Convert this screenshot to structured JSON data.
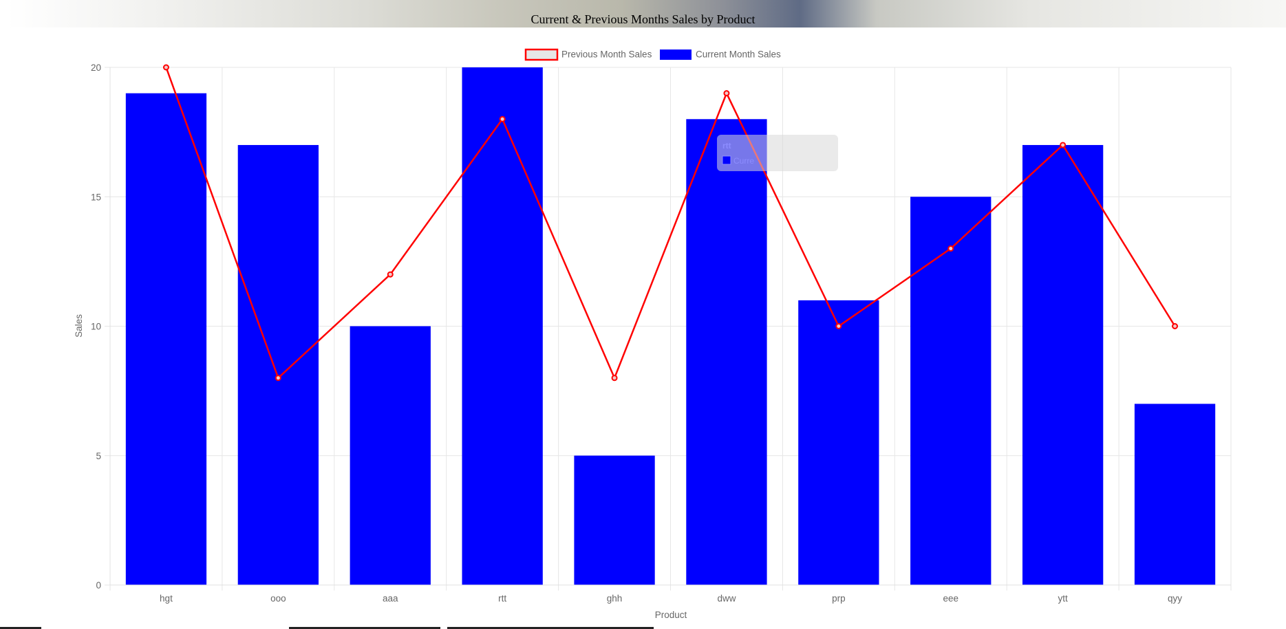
{
  "page": {
    "title": "Current & Previous Months Sales by Product"
  },
  "colors": {
    "bar": "#0000ff",
    "line": "#ff0000",
    "grid": "#e6e6e6",
    "text": "#666666",
    "legend_line_fill": "#e6e6e6"
  },
  "tooltip": {
    "title": "rtt",
    "label": "Curre"
  },
  "chart_data": {
    "type": "bar",
    "title": "",
    "xlabel": "Product",
    "ylabel": "Sales",
    "ylim": [
      0,
      20
    ],
    "yticks": [
      0,
      5,
      10,
      15,
      20
    ],
    "grid": true,
    "legend_position": "top",
    "categories": [
      "hgt",
      "ooo",
      "aaa",
      "rtt",
      "ghh",
      "dww",
      "prp",
      "eee",
      "ytt",
      "qyy"
    ],
    "series": [
      {
        "name": "Previous Month Sales",
        "type": "line",
        "color": "#ff0000",
        "values": [
          20,
          8,
          12,
          18,
          8,
          19,
          10,
          13,
          17,
          10
        ]
      },
      {
        "name": "Current Month Sales",
        "type": "bar",
        "color": "#0000ff",
        "values": [
          19,
          17,
          10,
          20,
          5,
          18,
          11,
          15,
          17,
          7
        ]
      }
    ]
  }
}
